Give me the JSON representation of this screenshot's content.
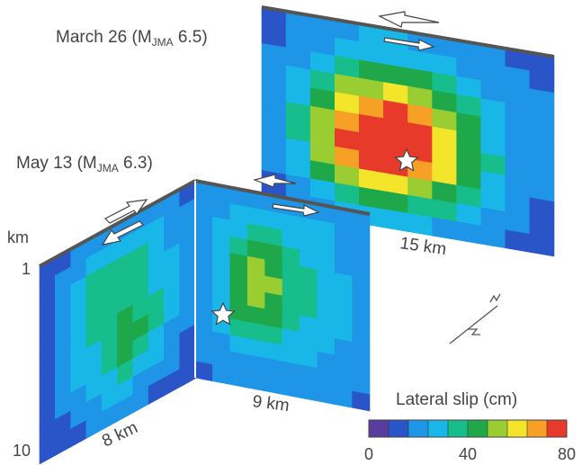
{
  "events": [
    {
      "date": "March 26",
      "mag_prefix": "M",
      "mag_sub": "JMA",
      "mag_value": "6.5",
      "length_label": "15 km"
    },
    {
      "date": "May 13",
      "mag_prefix": "M",
      "mag_sub": "JMA",
      "mag_value": "6.3",
      "length_label_north": "9 km",
      "length_label_west": "8 km"
    }
  ],
  "depth_axis": {
    "unit": "km",
    "top": "1",
    "bottom": "10"
  },
  "colorbar": {
    "title": "Lateral slip (cm)",
    "ticks": [
      "0",
      "40",
      "80"
    ],
    "min": 0,
    "max": 80,
    "colors": [
      "#5a3b9e",
      "#2a55c8",
      "#1e95e6",
      "#19b7e8",
      "#17bd8a",
      "#1ea84a",
      "#9acd32",
      "#f3e62a",
      "#f6a025",
      "#e83a2a"
    ]
  },
  "colors": {
    "fault_trace": "#555555",
    "background": "#ffffff"
  },
  "slip_grids": {
    "march26": [
      [
        12,
        16,
        20,
        22,
        24,
        24,
        22,
        20,
        18,
        16,
        14,
        12
      ],
      [
        14,
        18,
        22,
        26,
        28,
        28,
        26,
        24,
        20,
        18,
        16,
        14
      ],
      [
        16,
        22,
        28,
        36,
        40,
        42,
        40,
        34,
        28,
        22,
        18,
        16
      ],
      [
        18,
        26,
        38,
        48,
        54,
        56,
        52,
        44,
        34,
        26,
        20,
        16
      ],
      [
        20,
        30,
        46,
        60,
        70,
        72,
        66,
        54,
        40,
        28,
        22,
        18
      ],
      [
        20,
        32,
        52,
        70,
        78,
        80,
        74,
        60,
        44,
        30,
        22,
        18
      ],
      [
        20,
        32,
        52,
        72,
        80,
        80,
        74,
        62,
        46,
        32,
        22,
        18
      ],
      [
        18,
        30,
        48,
        66,
        72,
        72,
        66,
        56,
        42,
        30,
        22,
        16
      ],
      [
        16,
        26,
        40,
        52,
        58,
        58,
        52,
        44,
        34,
        26,
        18,
        14
      ],
      [
        14,
        22,
        30,
        38,
        42,
        42,
        38,
        32,
        26,
        20,
        16,
        12
      ],
      [
        12,
        18,
        22,
        26,
        28,
        28,
        26,
        22,
        20,
        16,
        14,
        12
      ]
    ],
    "may13_north": [
      [
        16,
        18,
        20,
        20,
        20,
        22,
        22,
        20,
        18,
        16
      ],
      [
        18,
        22,
        24,
        26,
        26,
        26,
        26,
        24,
        20,
        18
      ],
      [
        18,
        24,
        30,
        34,
        32,
        28,
        28,
        26,
        22,
        18
      ],
      [
        20,
        26,
        38,
        42,
        40,
        32,
        30,
        28,
        22,
        20
      ],
      [
        20,
        28,
        44,
        48,
        46,
        36,
        32,
        28,
        24,
        20
      ],
      [
        20,
        28,
        46,
        50,
        48,
        38,
        32,
        30,
        24,
        20
      ],
      [
        20,
        30,
        46,
        48,
        46,
        36,
        32,
        28,
        24,
        20
      ],
      [
        20,
        28,
        42,
        44,
        42,
        34,
        30,
        28,
        24,
        20
      ],
      [
        18,
        26,
        34,
        36,
        36,
        30,
        28,
        26,
        22,
        18
      ],
      [
        18,
        22,
        26,
        28,
        28,
        26,
        24,
        22,
        20,
        18
      ],
      [
        16,
        20,
        22,
        22,
        22,
        22,
        22,
        20,
        18,
        16
      ],
      [
        14,
        16,
        18,
        18,
        18,
        18,
        18,
        18,
        16,
        14
      ]
    ],
    "may13_west": [
      [
        10,
        14,
        18,
        20,
        22,
        22,
        20,
        18,
        16,
        14
      ],
      [
        12,
        18,
        22,
        26,
        28,
        28,
        26,
        24,
        20,
        16
      ],
      [
        14,
        20,
        28,
        32,
        34,
        34,
        32,
        28,
        22,
        16
      ],
      [
        14,
        22,
        30,
        34,
        36,
        36,
        34,
        30,
        24,
        18
      ],
      [
        14,
        22,
        30,
        34,
        36,
        38,
        36,
        30,
        24,
        18
      ],
      [
        14,
        22,
        28,
        32,
        36,
        40,
        38,
        32,
        24,
        18
      ],
      [
        12,
        20,
        26,
        30,
        36,
        42,
        40,
        32,
        24,
        16
      ],
      [
        12,
        18,
        24,
        28,
        34,
        40,
        38,
        30,
        22,
        16
      ],
      [
        10,
        16,
        22,
        26,
        30,
        32,
        30,
        26,
        20,
        14
      ],
      [
        10,
        14,
        18,
        22,
        24,
        24,
        22,
        20,
        16,
        12
      ],
      [
        8,
        12,
        14,
        16,
        18,
        18,
        16,
        14,
        12,
        10
      ]
    ]
  }
}
